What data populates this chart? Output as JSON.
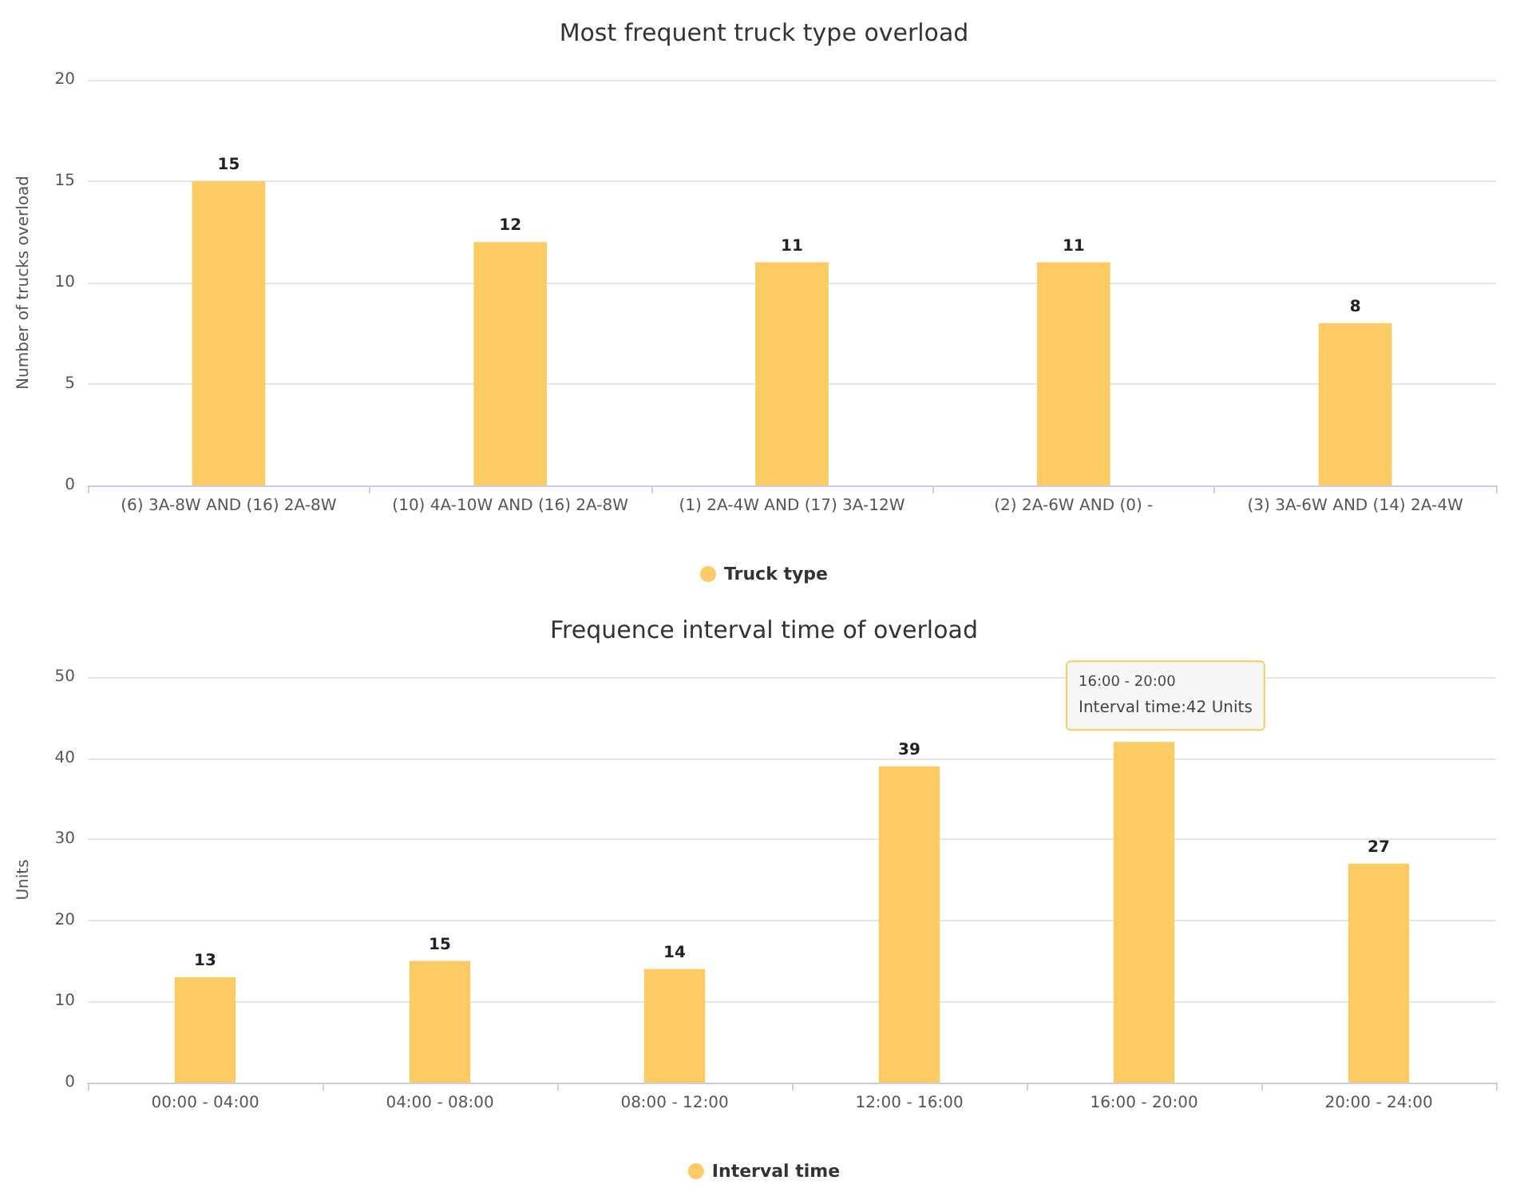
{
  "chart_data": [
    {
      "type": "bar",
      "title": "Most frequent truck type overload",
      "ylabel": "Number of trucks overload",
      "categories": [
        "(6) 3A-8W AND (16) 2A-8W",
        "(10) 4A-10W AND (16) 2A-8W",
        "(1) 2A-4W AND (17) 3A-12W",
        "(2) 2A-6W AND (0) -",
        "(3) 3A-6W AND (14) 2A-4W"
      ],
      "series": [
        {
          "name": "Truck type",
          "color": "#fdcb64",
          "values": [
            15,
            12,
            11,
            11,
            8
          ]
        }
      ],
      "ylim": [
        0,
        20
      ],
      "yticks": [
        0,
        5,
        10,
        15,
        20
      ],
      "grid": "y",
      "legend": "bottom",
      "data_labels": true
    },
    {
      "type": "bar",
      "title": "Frequence interval time of overload",
      "ylabel": "Units",
      "categories": [
        "00:00 - 04:00",
        "04:00 - 08:00",
        "08:00 - 12:00",
        "12:00 - 16:00",
        "16:00 - 20:00",
        "20:00 - 24:00"
      ],
      "series": [
        {
          "name": "Interval time",
          "color": "#fdcb64",
          "values": [
            13,
            15,
            14,
            39,
            42,
            27
          ],
          "value_labels": [
            "13",
            "15",
            "14",
            "39",
            null,
            "27"
          ]
        }
      ],
      "ylim": [
        0,
        50
      ],
      "yticks": [
        0,
        10,
        20,
        30,
        40,
        50
      ],
      "grid": "y",
      "legend": "bottom",
      "annotations": [
        {
          "text": "16:00 - 20:00\nInterval time:42 Units",
          "x": "16:00 - 20:00",
          "y": 42
        }
      ]
    }
  ]
}
